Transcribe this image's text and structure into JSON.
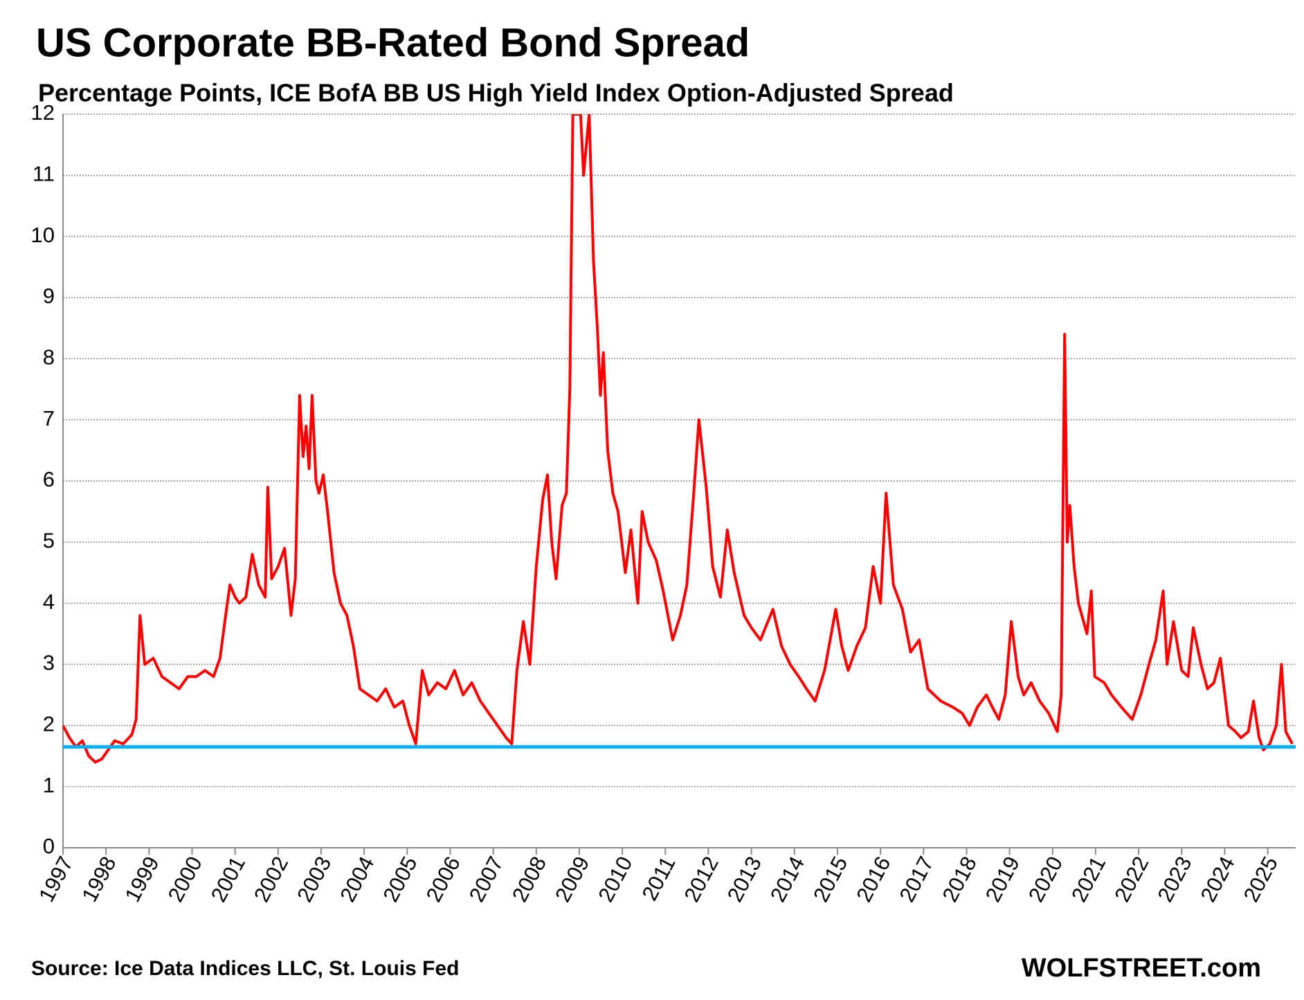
{
  "chart_data": {
    "type": "line",
    "title": "US Corporate BB-Rated Bond Spread",
    "subtitle": "Percentage Points, ICE BofA BB US High Yield Index Option-Adjusted Spread",
    "source": "Source: Ice Data Indices LLC, St. Louis Fed",
    "watermark": "WOLFSTREET.com",
    "color": "#ff0000",
    "grid": true,
    "xlim": [
      1997,
      2025.65
    ],
    "xticks": [
      1997,
      1998,
      1999,
      2000,
      2001,
      2002,
      2003,
      2004,
      2005,
      2006,
      2007,
      2008,
      2009,
      2010,
      2011,
      2012,
      2013,
      2014,
      2015,
      2016,
      2017,
      2018,
      2019,
      2020,
      2021,
      2022,
      2023,
      2024,
      2025
    ],
    "ylim": [
      0,
      12
    ],
    "yticks": [
      0,
      1,
      2,
      3,
      4,
      5,
      6,
      7,
      8,
      9,
      10,
      11,
      12
    ],
    "reference_line": {
      "value": 1.65,
      "color": "#00b0f0"
    },
    "x": [
      1997.0,
      1997.15,
      1997.3,
      1997.45,
      1997.6,
      1997.75,
      1997.9,
      1998.05,
      1998.2,
      1998.4,
      1998.6,
      1998.7,
      1998.79,
      1998.9,
      1999.1,
      1999.3,
      1999.5,
      1999.7,
      1999.9,
      2000.1,
      2000.3,
      2000.5,
      2000.65,
      2000.8,
      2000.88,
      2001.0,
      2001.1,
      2001.25,
      2001.4,
      2001.55,
      2001.7,
      2001.76,
      2001.85,
      2002.0,
      2002.15,
      2002.3,
      2002.4,
      2002.5,
      2002.58,
      2002.65,
      2002.72,
      2002.79,
      2002.88,
      2002.95,
      2003.05,
      2003.15,
      2003.3,
      2003.45,
      2003.6,
      2003.75,
      2003.9,
      2004.1,
      2004.3,
      2004.5,
      2004.7,
      2004.9,
      2005.05,
      2005.2,
      2005.35,
      2005.5,
      2005.7,
      2005.9,
      2006.1,
      2006.3,
      2006.5,
      2006.7,
      2006.9,
      2007.1,
      2007.3,
      2007.43,
      2007.55,
      2007.7,
      2007.85,
      2008.0,
      2008.15,
      2008.26,
      2008.36,
      2008.46,
      2008.6,
      2008.7,
      2008.78,
      2008.85,
      2008.95,
      2009.03,
      2009.1,
      2009.23,
      2009.33,
      2009.42,
      2009.49,
      2009.56,
      2009.66,
      2009.78,
      2009.9,
      2010.07,
      2010.2,
      2010.36,
      2010.46,
      2010.6,
      2010.79,
      2010.95,
      2011.17,
      2011.35,
      2011.5,
      2011.66,
      2011.78,
      2011.95,
      2012.1,
      2012.28,
      2012.44,
      2012.6,
      2012.83,
      2013.0,
      2013.21,
      2013.5,
      2013.7,
      2013.9,
      2014.1,
      2014.28,
      2014.48,
      2014.7,
      2014.96,
      2015.1,
      2015.25,
      2015.45,
      2015.65,
      2015.83,
      2016.0,
      2016.13,
      2016.3,
      2016.51,
      2016.7,
      2016.9,
      2017.1,
      2017.4,
      2017.68,
      2017.9,
      2018.07,
      2018.25,
      2018.46,
      2018.6,
      2018.75,
      2018.9,
      2019.04,
      2019.2,
      2019.33,
      2019.5,
      2019.7,
      2019.91,
      2020.11,
      2020.2,
      2020.28,
      2020.34,
      2020.4,
      2020.5,
      2020.6,
      2020.8,
      2020.9,
      2020.98,
      2021.2,
      2021.37,
      2021.6,
      2021.85,
      2022.05,
      2022.24,
      2022.4,
      2022.57,
      2022.66,
      2022.81,
      2023.0,
      2023.15,
      2023.27,
      2023.45,
      2023.6,
      2023.75,
      2023.9,
      2024.09,
      2024.25,
      2024.38,
      2024.55,
      2024.67,
      2024.8,
      2024.9,
      2025.05,
      2025.2,
      2025.32,
      2025.42,
      2025.57
    ],
    "values": [
      2.0,
      1.8,
      1.65,
      1.75,
      1.5,
      1.4,
      1.45,
      1.6,
      1.75,
      1.7,
      1.85,
      2.1,
      3.8,
      3.0,
      3.1,
      2.8,
      2.7,
      2.6,
      2.8,
      2.8,
      2.9,
      2.8,
      3.1,
      3.9,
      4.3,
      4.1,
      4.0,
      4.1,
      4.8,
      4.3,
      4.1,
      5.9,
      4.4,
      4.6,
      4.9,
      3.8,
      4.4,
      7.4,
      6.4,
      6.9,
      6.2,
      7.4,
      6.0,
      5.8,
      6.1,
      5.5,
      4.5,
      4.0,
      3.8,
      3.3,
      2.6,
      2.5,
      2.4,
      2.6,
      2.3,
      2.4,
      2.0,
      1.7,
      2.9,
      2.5,
      2.7,
      2.6,
      2.9,
      2.5,
      2.7,
      2.4,
      2.2,
      2.0,
      1.8,
      1.7,
      2.9,
      3.7,
      3.0,
      4.6,
      5.7,
      6.1,
      5.0,
      4.4,
      5.6,
      5.8,
      7.5,
      12.0,
      12.0,
      12.0,
      11.0,
      12.0,
      9.6,
      8.5,
      7.4,
      8.1,
      6.5,
      5.8,
      5.5,
      4.5,
      5.2,
      4.0,
      5.5,
      5.0,
      4.7,
      4.2,
      3.4,
      3.8,
      4.3,
      5.8,
      7.0,
      5.9,
      4.6,
      4.1,
      5.2,
      4.5,
      3.8,
      3.6,
      3.4,
      3.9,
      3.3,
      3.0,
      2.8,
      2.6,
      2.4,
      2.9,
      3.9,
      3.3,
      2.9,
      3.3,
      3.6,
      4.6,
      4.0,
      5.8,
      4.3,
      3.9,
      3.2,
      3.4,
      2.6,
      2.4,
      2.3,
      2.2,
      2.0,
      2.3,
      2.5,
      2.3,
      2.1,
      2.5,
      3.7,
      2.8,
      2.5,
      2.7,
      2.4,
      2.2,
      1.9,
      2.5,
      8.4,
      5.0,
      5.6,
      4.6,
      4.0,
      3.5,
      4.2,
      2.8,
      2.7,
      2.5,
      2.3,
      2.1,
      2.5,
      3.0,
      3.4,
      4.2,
      3.0,
      3.7,
      2.9,
      2.8,
      3.6,
      3.0,
      2.6,
      2.7,
      3.1,
      2.0,
      1.9,
      1.8,
      1.9,
      2.4,
      1.8,
      1.6,
      1.7,
      2.0,
      3.0,
      1.9,
      1.7
    ]
  }
}
